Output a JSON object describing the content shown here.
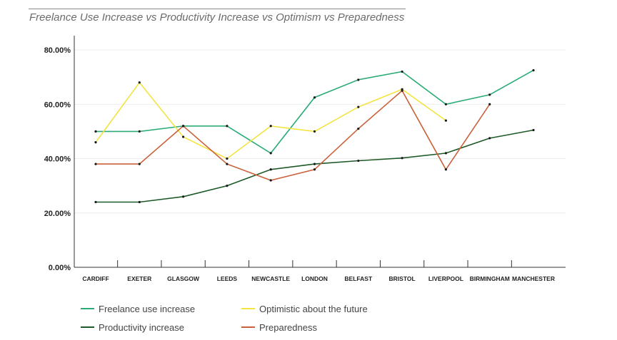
{
  "chart_data": {
    "type": "line",
    "title": "Freelance Use Increase vs Productivity Increase vs Optimism vs Preparedness",
    "xlabel": "",
    "ylabel": "",
    "ylim": [
      0,
      80
    ],
    "yticks": [
      0,
      20,
      40,
      60,
      80
    ],
    "ytick_labels": [
      "0.00%",
      "20.00%",
      "40.00%",
      "60.00%",
      "80.00%"
    ],
    "categories": [
      "CARDIFF",
      "EXETER",
      "GLASGOW",
      "LEEDS",
      "NEWCASTLE",
      "LONDON",
      "BELFAST",
      "BRISTOL",
      "LIVERPOOL",
      "BIRMINGHAM",
      "MANCHESTER"
    ],
    "grid": true,
    "legend_position": "bottom",
    "series": [
      {
        "name": "Freelance use increase",
        "color": "#2bac76",
        "values": [
          50,
          50,
          52,
          52,
          42,
          62.5,
          69,
          72,
          60,
          63.5,
          72.5
        ]
      },
      {
        "name": "Productivity increase",
        "color": "#1e5a27",
        "values": [
          24,
          24,
          26,
          30,
          36,
          38,
          39.2,
          40.2,
          42,
          47.5,
          50.5
        ]
      },
      {
        "name": "Optimistic about the future",
        "color": "#f2e441",
        "values": [
          46,
          68,
          48,
          40,
          52,
          50,
          59,
          65.5,
          54,
          null,
          null
        ]
      },
      {
        "name": "Preparedness",
        "color": "#c9623a",
        "values": [
          38,
          38,
          52,
          38,
          32,
          36,
          51,
          65,
          36,
          60,
          null
        ]
      }
    ]
  }
}
